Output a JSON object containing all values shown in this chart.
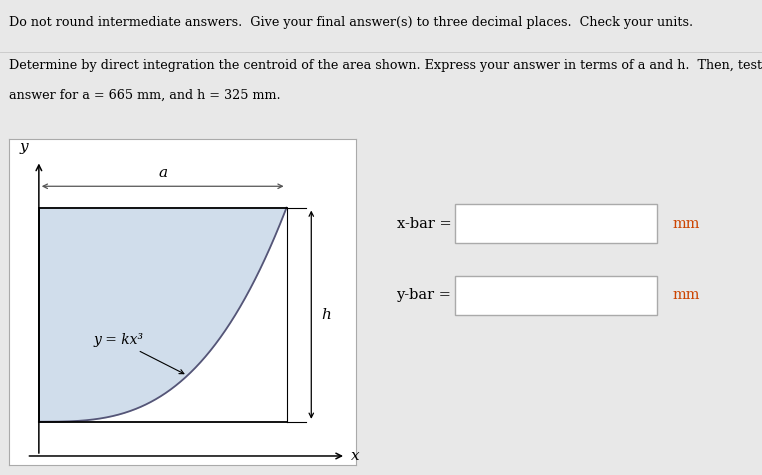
{
  "title_line1": "Do not round intermediate answers.  Give your final answer(s) to three decimal places.  Check your units.",
  "problem_line1": "Determine by direct integration the centroid of the area shown. Express your answer in terms of a and h.  Then, test your",
  "problem_line2": "answer for a = 665 mm, and h = 325 mm.",
  "xbar_label": "x-bar =",
  "ybar_label": "y-bar =",
  "unit_label": "mm",
  "curve_label": "y = kx³",
  "dim_a_label": "a",
  "dim_h_label": "h",
  "axis_x_label": "x",
  "axis_y_label": "y",
  "bg_color": "#e8e8e8",
  "panel_bg": "#ffffff",
  "fill_color": "#c8d8e8",
  "fill_alpha": 0.85,
  "input_box_color": "#ffffff",
  "text_color": "#000000",
  "title_color": "#000000",
  "problem_color": "#000000"
}
